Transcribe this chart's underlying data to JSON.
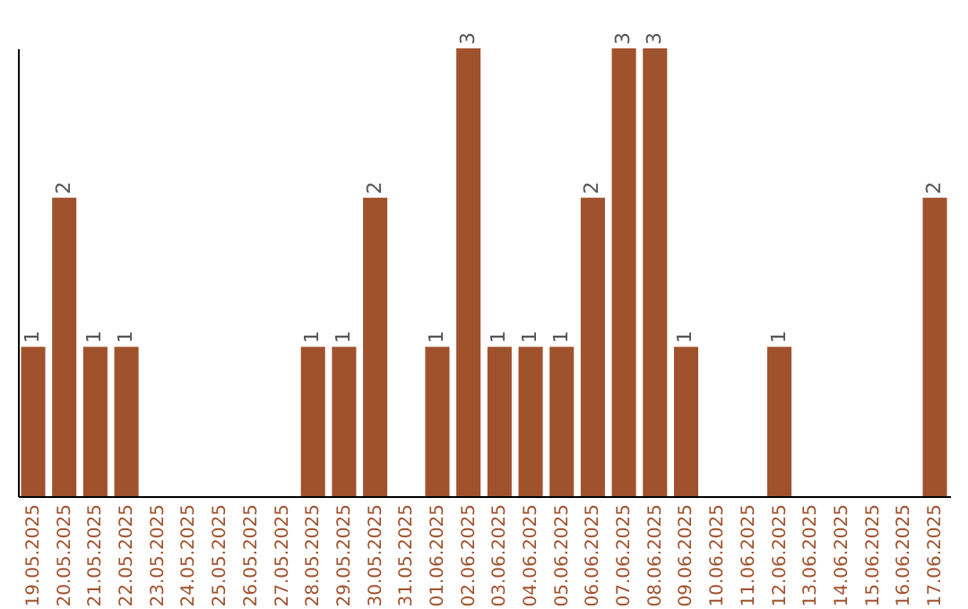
{
  "chart_data": {
    "type": "bar",
    "categories": [
      "19.05.2025",
      "20.05.2025",
      "21.05.2025",
      "22.05.2025",
      "23.05.2025",
      "24.05.2025",
      "25.05.2025",
      "26.05.2025",
      "27.05.2025",
      "28.05.2025",
      "29.05.2025",
      "30.05.2025",
      "31.05.2025",
      "01.06.2025",
      "02.06.2025",
      "03.06.2025",
      "04.06.2025",
      "05.06.2025",
      "06.06.2025",
      "07.06.2025",
      "08.06.2025",
      "09.06.2025",
      "10.06.2025",
      "11.06.2025",
      "12.06.2025",
      "13.06.2025",
      "14.06.2025",
      "15.06.2025",
      "16.06.2025",
      "17.06.2025"
    ],
    "values": [
      1,
      2,
      1,
      1,
      0,
      0,
      0,
      0,
      0,
      1,
      1,
      2,
      0,
      1,
      3,
      1,
      1,
      1,
      2,
      3,
      3,
      1,
      0,
      0,
      1,
      0,
      0,
      0,
      0,
      2
    ],
    "value_labels": [
      "1",
      "2",
      "1",
      "1",
      null,
      null,
      null,
      null,
      null,
      "1",
      "1",
      "2",
      null,
      "1",
      "3",
      "1",
      "1",
      "1",
      "2",
      "3",
      "3",
      "1",
      null,
      null,
      "1",
      null,
      null,
      null,
      null,
      "2"
    ],
    "color": "#a0522d",
    "tick_labels": "x"
  }
}
